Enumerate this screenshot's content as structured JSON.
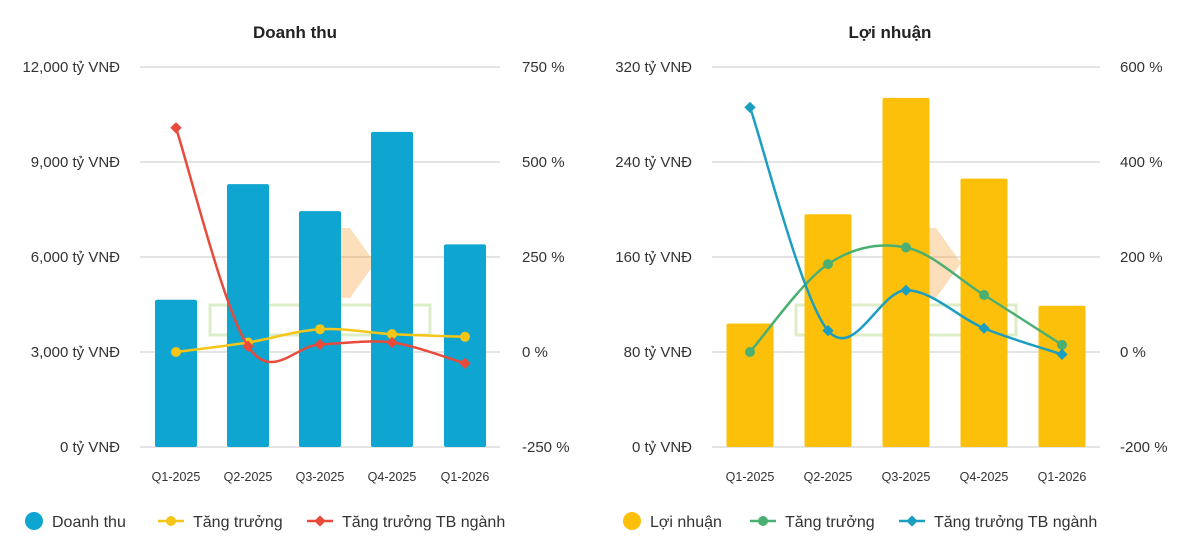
{
  "chart_data": [
    {
      "type": "bar",
      "title": "Doanh thu",
      "categories": [
        "Q1-2025",
        "Q2-2025",
        "Q3-2025",
        "Q4-2025",
        "Q1-2026"
      ],
      "y_left": {
        "ticks": [
          0,
          3000,
          6000,
          9000,
          12000
        ],
        "tick_labels": [
          "0 tỷ VNĐ",
          "3,000 tỷ VNĐ",
          "6,000 tỷ VNĐ",
          "9,000 tỷ VNĐ",
          "12,000 tỷ VNĐ"
        ],
        "ylim": [
          0,
          12000
        ]
      },
      "y_right": {
        "ticks": [
          -250,
          0,
          250,
          500,
          750
        ],
        "tick_labels": [
          "-250 %",
          "0 %",
          "250 %",
          "500 %",
          "750 %"
        ],
        "ylim": [
          -250,
          750
        ]
      },
      "series": [
        {
          "name": "Doanh thu",
          "kind": "bar",
          "axis": "left",
          "color": "#0ea5d0",
          "values": [
            4650,
            8300,
            7450,
            9950,
            6400
          ]
        },
        {
          "name": "Tăng trưởng",
          "kind": "line",
          "axis": "right",
          "color": "#f5c518",
          "values": [
            0,
            25,
            60,
            47,
            40
          ]
        },
        {
          "name": "Tăng trưởng TB ngành",
          "kind": "line",
          "axis": "right",
          "color": "#e84a3b",
          "values": [
            590,
            15,
            20,
            25,
            -30
          ]
        }
      ],
      "legend_position": "bottom",
      "grid": true
    },
    {
      "type": "bar",
      "title": "Lợi nhuận",
      "categories": [
        "Q1-2025",
        "Q2-2025",
        "Q3-2025",
        "Q4-2025",
        "Q1-2026"
      ],
      "y_left": {
        "ticks": [
          0,
          80,
          160,
          240,
          320
        ],
        "tick_labels": [
          "0 tỷ VNĐ",
          "80 tỷ VNĐ",
          "160 tỷ VNĐ",
          "240 tỷ VNĐ",
          "320 tỷ VNĐ"
        ],
        "ylim": [
          0,
          320
        ]
      },
      "y_right": {
        "ticks": [
          -200,
          0,
          200,
          400,
          600
        ],
        "tick_labels": [
          "-200 %",
          "0 %",
          "200 %",
          "400 %",
          "600 %"
        ],
        "ylim": [
          -200,
          600
        ]
      },
      "series": [
        {
          "name": "Lợi nhuận",
          "kind": "bar",
          "axis": "left",
          "color": "#fcc00a",
          "values": [
            104,
            196,
            294,
            226,
            119
          ]
        },
        {
          "name": "Tăng trưởng",
          "kind": "line",
          "axis": "right",
          "color": "#4caf72",
          "values": [
            0,
            185,
            220,
            120,
            15
          ]
        },
        {
          "name": "Tăng trưởng TB ngành",
          "kind": "line",
          "axis": "right",
          "color": "#1c9ec0",
          "values": [
            515,
            45,
            130,
            50,
            -5
          ]
        }
      ],
      "legend_position": "bottom",
      "grid": true
    }
  ]
}
